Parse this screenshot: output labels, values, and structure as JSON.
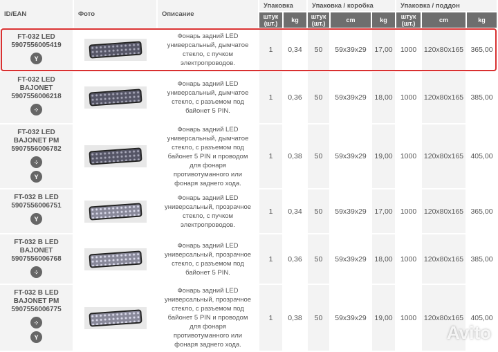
{
  "headers": {
    "id": "ID/EAN",
    "photo": "Фото",
    "desc": "Описание",
    "pack": "Упаковка",
    "box": "Упаковка / коробка",
    "pallet": "Упаковка / поддон",
    "pcs": "штук (шт.)",
    "kg": "kg",
    "cm": "cm"
  },
  "rows": [
    {
      "id": "FT-032 LED",
      "ean": "5907556005419",
      "icons": [
        "wire"
      ],
      "glass": "smoked",
      "desc": "Фонарь задний LED универсальный, дымчатое стекло, с пучком электропроводов.",
      "pcs": "1",
      "kg": "0,34",
      "box_pcs": "50",
      "box_cm": "59x39x29",
      "box_kg": "17,00",
      "pal_pcs": "1000",
      "pal_cm": "120x80x165",
      "pal_kg": "365,00",
      "highlighted": true
    },
    {
      "id": "FT-032 LED BAJONET",
      "ean": "5907556006218",
      "icons": [
        "connector"
      ],
      "glass": "smoked",
      "desc": "Фонарь задний LED универсальный, дымчатое стекло, с разъемом под байонет 5 PIN.",
      "pcs": "1",
      "kg": "0,36",
      "box_pcs": "50",
      "box_cm": "59x39x29",
      "box_kg": "18,00",
      "pal_pcs": "1000",
      "pal_cm": "120x80x165",
      "pal_kg": "385,00"
    },
    {
      "id": "FT-032 LED BAJONET PM",
      "ean": "5907556006782",
      "icons": [
        "connector",
        "wire"
      ],
      "glass": "smoked",
      "desc": "Фонарь задний LED универсальный, дымчатое стекло, с разъемом под байонет 5 PIN и проводом для фонаря противотуманного или фонаря заднего хода.",
      "pcs": "1",
      "kg": "0,38",
      "box_pcs": "50",
      "box_cm": "59x39x29",
      "box_kg": "19,00",
      "pal_pcs": "1000",
      "pal_cm": "120x80x165",
      "pal_kg": "405,00"
    },
    {
      "id": "FT-032 B LED",
      "ean": "5907556006751",
      "icons": [
        "wire"
      ],
      "glass": "clear",
      "desc": "Фонарь задний LED универсальный, прозрачное стекло, с пучком электропроводов.",
      "pcs": "1",
      "kg": "0,34",
      "box_pcs": "50",
      "box_cm": "59x39x29",
      "box_kg": "17,00",
      "pal_pcs": "1000",
      "pal_cm": "120x80x165",
      "pal_kg": "365,00"
    },
    {
      "id": "FT-032 B LED BAJONET",
      "ean": "5907556006768",
      "icons": [
        "connector"
      ],
      "glass": "clear",
      "desc": "Фонарь задний LED универсальный, прозрачное стекло, с разъемом под байонет 5 PIN.",
      "pcs": "1",
      "kg": "0,36",
      "box_pcs": "50",
      "box_cm": "59x39x29",
      "box_kg": "18,00",
      "pal_pcs": "1000",
      "pal_cm": "120x80x165",
      "pal_kg": "385,00"
    },
    {
      "id": "FT-032 B LED BAJONET PM",
      "ean": "5907556006775",
      "icons": [
        "connector",
        "wire"
      ],
      "glass": "clear",
      "desc": "Фонарь задний LED универсальный, прозрачное стекло, с разъемом под байонет 5 PIN и проводом для фонаря противотуманного или фонаря заднего хода.",
      "pcs": "1",
      "kg": "0,38",
      "box_pcs": "50",
      "box_cm": "59x39x29",
      "box_kg": "19,00",
      "pal_pcs": "1000",
      "pal_cm": "120x80x165",
      "pal_kg": "405,00"
    }
  ],
  "watermark": "Avito",
  "highlight_color": "#d93030"
}
